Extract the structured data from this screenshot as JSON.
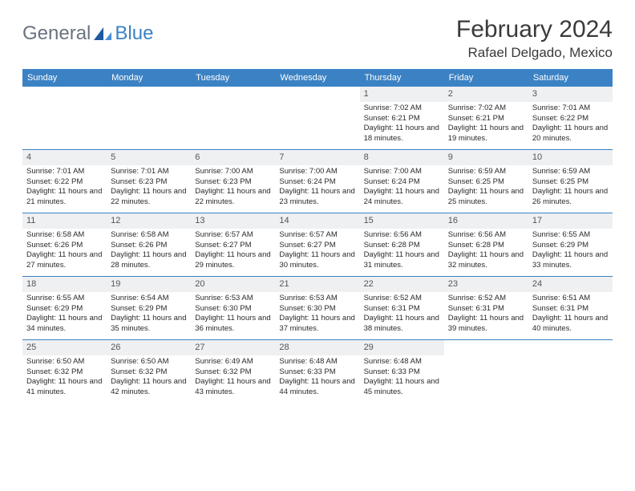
{
  "brand": {
    "text1": "General",
    "text2": "Blue"
  },
  "title": "February 2024",
  "location": "Rafael Delgado, Mexico",
  "colors": {
    "header_bg": "#3b82c4",
    "header_text": "#ffffff",
    "daynum_bg": "#eef0f2",
    "border": "#3b82c4",
    "text": "#2a2a2a",
    "logo_grey": "#6b7280",
    "logo_blue": "#3b82c4"
  },
  "typography": {
    "title_fontsize": 30,
    "location_fontsize": 17,
    "header_fontsize": 11,
    "daynum_fontsize": 11,
    "body_fontsize": 9.5
  },
  "day_names": [
    "Sunday",
    "Monday",
    "Tuesday",
    "Wednesday",
    "Thursday",
    "Friday",
    "Saturday"
  ],
  "weeks": [
    [
      null,
      null,
      null,
      null,
      {
        "n": "1",
        "sr": "Sunrise: 7:02 AM",
        "ss": "Sunset: 6:21 PM",
        "dl": "Daylight: 11 hours and 18 minutes."
      },
      {
        "n": "2",
        "sr": "Sunrise: 7:02 AM",
        "ss": "Sunset: 6:21 PM",
        "dl": "Daylight: 11 hours and 19 minutes."
      },
      {
        "n": "3",
        "sr": "Sunrise: 7:01 AM",
        "ss": "Sunset: 6:22 PM",
        "dl": "Daylight: 11 hours and 20 minutes."
      }
    ],
    [
      {
        "n": "4",
        "sr": "Sunrise: 7:01 AM",
        "ss": "Sunset: 6:22 PM",
        "dl": "Daylight: 11 hours and 21 minutes."
      },
      {
        "n": "5",
        "sr": "Sunrise: 7:01 AM",
        "ss": "Sunset: 6:23 PM",
        "dl": "Daylight: 11 hours and 22 minutes."
      },
      {
        "n": "6",
        "sr": "Sunrise: 7:00 AM",
        "ss": "Sunset: 6:23 PM",
        "dl": "Daylight: 11 hours and 22 minutes."
      },
      {
        "n": "7",
        "sr": "Sunrise: 7:00 AM",
        "ss": "Sunset: 6:24 PM",
        "dl": "Daylight: 11 hours and 23 minutes."
      },
      {
        "n": "8",
        "sr": "Sunrise: 7:00 AM",
        "ss": "Sunset: 6:24 PM",
        "dl": "Daylight: 11 hours and 24 minutes."
      },
      {
        "n": "9",
        "sr": "Sunrise: 6:59 AM",
        "ss": "Sunset: 6:25 PM",
        "dl": "Daylight: 11 hours and 25 minutes."
      },
      {
        "n": "10",
        "sr": "Sunrise: 6:59 AM",
        "ss": "Sunset: 6:25 PM",
        "dl": "Daylight: 11 hours and 26 minutes."
      }
    ],
    [
      {
        "n": "11",
        "sr": "Sunrise: 6:58 AM",
        "ss": "Sunset: 6:26 PM",
        "dl": "Daylight: 11 hours and 27 minutes."
      },
      {
        "n": "12",
        "sr": "Sunrise: 6:58 AM",
        "ss": "Sunset: 6:26 PM",
        "dl": "Daylight: 11 hours and 28 minutes."
      },
      {
        "n": "13",
        "sr": "Sunrise: 6:57 AM",
        "ss": "Sunset: 6:27 PM",
        "dl": "Daylight: 11 hours and 29 minutes."
      },
      {
        "n": "14",
        "sr": "Sunrise: 6:57 AM",
        "ss": "Sunset: 6:27 PM",
        "dl": "Daylight: 11 hours and 30 minutes."
      },
      {
        "n": "15",
        "sr": "Sunrise: 6:56 AM",
        "ss": "Sunset: 6:28 PM",
        "dl": "Daylight: 11 hours and 31 minutes."
      },
      {
        "n": "16",
        "sr": "Sunrise: 6:56 AM",
        "ss": "Sunset: 6:28 PM",
        "dl": "Daylight: 11 hours and 32 minutes."
      },
      {
        "n": "17",
        "sr": "Sunrise: 6:55 AM",
        "ss": "Sunset: 6:29 PM",
        "dl": "Daylight: 11 hours and 33 minutes."
      }
    ],
    [
      {
        "n": "18",
        "sr": "Sunrise: 6:55 AM",
        "ss": "Sunset: 6:29 PM",
        "dl": "Daylight: 11 hours and 34 minutes."
      },
      {
        "n": "19",
        "sr": "Sunrise: 6:54 AM",
        "ss": "Sunset: 6:29 PM",
        "dl": "Daylight: 11 hours and 35 minutes."
      },
      {
        "n": "20",
        "sr": "Sunrise: 6:53 AM",
        "ss": "Sunset: 6:30 PM",
        "dl": "Daylight: 11 hours and 36 minutes."
      },
      {
        "n": "21",
        "sr": "Sunrise: 6:53 AM",
        "ss": "Sunset: 6:30 PM",
        "dl": "Daylight: 11 hours and 37 minutes."
      },
      {
        "n": "22",
        "sr": "Sunrise: 6:52 AM",
        "ss": "Sunset: 6:31 PM",
        "dl": "Daylight: 11 hours and 38 minutes."
      },
      {
        "n": "23",
        "sr": "Sunrise: 6:52 AM",
        "ss": "Sunset: 6:31 PM",
        "dl": "Daylight: 11 hours and 39 minutes."
      },
      {
        "n": "24",
        "sr": "Sunrise: 6:51 AM",
        "ss": "Sunset: 6:31 PM",
        "dl": "Daylight: 11 hours and 40 minutes."
      }
    ],
    [
      {
        "n": "25",
        "sr": "Sunrise: 6:50 AM",
        "ss": "Sunset: 6:32 PM",
        "dl": "Daylight: 11 hours and 41 minutes."
      },
      {
        "n": "26",
        "sr": "Sunrise: 6:50 AM",
        "ss": "Sunset: 6:32 PM",
        "dl": "Daylight: 11 hours and 42 minutes."
      },
      {
        "n": "27",
        "sr": "Sunrise: 6:49 AM",
        "ss": "Sunset: 6:32 PM",
        "dl": "Daylight: 11 hours and 43 minutes."
      },
      {
        "n": "28",
        "sr": "Sunrise: 6:48 AM",
        "ss": "Sunset: 6:33 PM",
        "dl": "Daylight: 11 hours and 44 minutes."
      },
      {
        "n": "29",
        "sr": "Sunrise: 6:48 AM",
        "ss": "Sunset: 6:33 PM",
        "dl": "Daylight: 11 hours and 45 minutes."
      },
      null,
      null
    ]
  ]
}
